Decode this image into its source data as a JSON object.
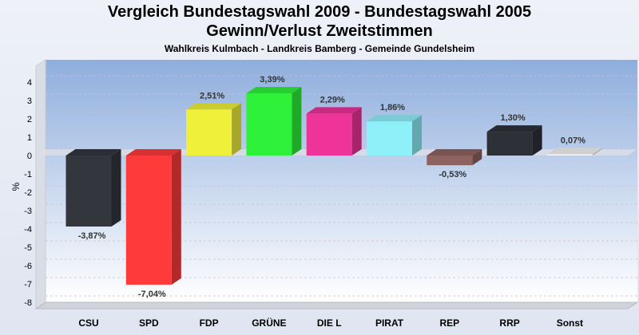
{
  "chart_data": {
    "type": "bar",
    "title": "Vergleich Bundestagswahl 2009 - Bundestagswahl 2005",
    "subtitle": "Gewinn/Verlust Zweitstimmen",
    "subtitle2": "Wahlkreis Kulmbach - Landkreis Bamberg - Gemeinde Gundelsheim",
    "xlabel": "",
    "ylabel": "%",
    "ylim": [
      -8,
      4
    ],
    "yticks": [
      4,
      3,
      2,
      1,
      0,
      -1,
      -2,
      -3,
      -4,
      -5,
      -6,
      -7,
      -8
    ],
    "categories": [
      "CSU",
      "SPD",
      "FDP",
      "GRÜNE",
      "DIE L",
      "PIRAT",
      "REP",
      "RRP",
      "Sonst"
    ],
    "values": [
      -3.87,
      -7.04,
      2.51,
      3.39,
      2.29,
      1.86,
      -0.53,
      1.3,
      0.07
    ],
    "labels": [
      "-3,87%",
      "-7,04%",
      "2,51%",
      "3,39%",
      "2,29%",
      "1,86%",
      "-0,53%",
      "1,30%",
      "0,07%"
    ],
    "colors": [
      "#33363d",
      "#ff3a3a",
      "#eef03a",
      "#2ef23a",
      "#ee3399",
      "#8ef0f8",
      "#8f6262",
      "#2e3038",
      "#f4f4f4"
    ],
    "grid": true
  }
}
